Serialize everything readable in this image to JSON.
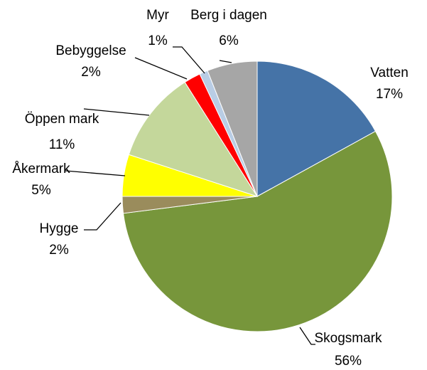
{
  "chart_data": {
    "type": "pie",
    "categories": [
      "Vatten",
      "Skogsmark",
      "Hygge",
      "Åkermark",
      "Öppen mark",
      "Bebyggelse",
      "Myr",
      "Berg i dagen"
    ],
    "values": [
      17,
      56,
      2,
      5,
      11,
      2,
      1,
      6
    ],
    "value_labels": [
      "17%",
      "56%",
      "2%",
      "5%",
      "11%",
      "2%",
      "1%",
      "6%"
    ],
    "colors": [
      "#4573a7",
      "#77963b",
      "#9a8c5c",
      "#ffff00",
      "#c4d79b",
      "#ff0000",
      "#b9cde5",
      "#a6a6a6"
    ]
  }
}
